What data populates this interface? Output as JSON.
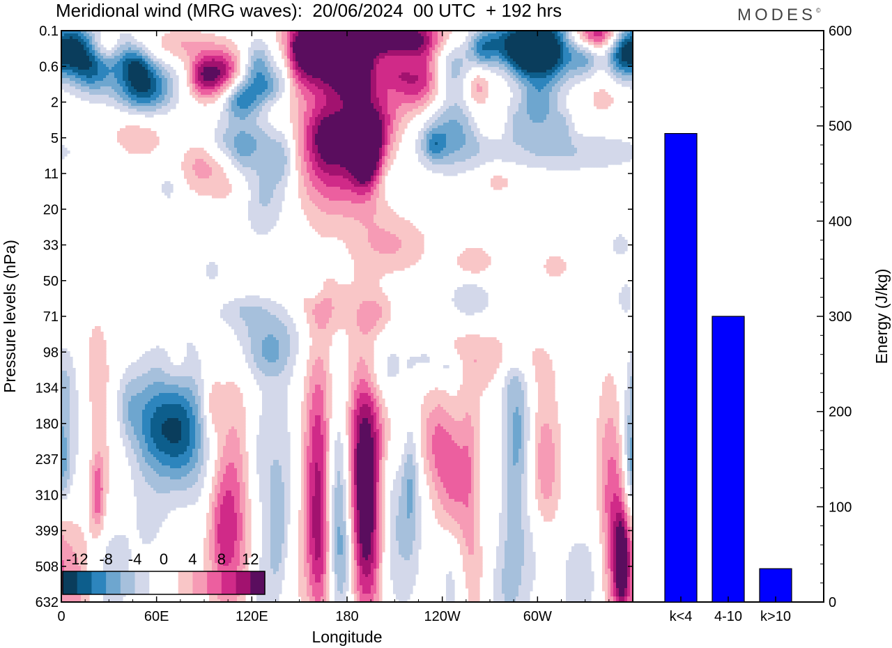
{
  "header": {
    "title": "Meridional wind (MRG waves):  20/06/2024  00 UTC  + 192 hrs",
    "brand": "MODES",
    "brand_mark": "©"
  },
  "chart_data": [
    {
      "type": "heatmap",
      "title": "Meridional wind (MRG waves):  20/06/2024  00 UTC  + 192 hrs",
      "xlabel": "Longitude",
      "ylabel": "Pressure levels (hPa)",
      "x_ticks": [
        "0",
        "60E",
        "120E",
        "180",
        "120W",
        "60W"
      ],
      "x_tick_degrees": [
        0,
        60,
        120,
        180,
        240,
        300
      ],
      "xlim": [
        0,
        360
      ],
      "y_ticks": [
        "0.1",
        "0.6",
        "2",
        "5",
        "11",
        "20",
        "33",
        "50",
        "71",
        "98",
        "134",
        "180",
        "237",
        "310",
        "399",
        "508",
        "632"
      ],
      "colorbar": {
        "labels": [
          "-12",
          "-8",
          "-4",
          "0",
          "4",
          "8",
          "12"
        ],
        "colors": [
          "#0a3d5c",
          "#0d5e8c",
          "#2d85bd",
          "#6ea6cf",
          "#a6c0dc",
          "#d3d8ea",
          "#ffffff",
          "#ffffff",
          "#f9c6c7",
          "#f69bb5",
          "#ec5f9f",
          "#d02a88",
          "#a2126f",
          "#5a0d5e"
        ]
      },
      "blobs": [
        {
          "x": 5,
          "lv": 0.5,
          "w": 11,
          "h": 0.55,
          "v": -14
        },
        {
          "x": 20,
          "lv": 1.1,
          "w": 9,
          "h": 0.5,
          "v": -8
        },
        {
          "x": 38,
          "lv": 0.6,
          "w": 7,
          "h": 0.45,
          "v": -6
        },
        {
          "x": 52,
          "lv": 1.6,
          "w": 13,
          "h": 0.55,
          "v": -12
        },
        {
          "x": 48,
          "lv": 1.0,
          "w": 6,
          "h": 0.35,
          "v": -6
        },
        {
          "x": 30,
          "lv": 0.45,
          "w": 8,
          "h": 0.3,
          "v": 5
        },
        {
          "x": 75,
          "lv": 0.4,
          "w": 14,
          "h": 0.35,
          "v": 4
        },
        {
          "x": 100,
          "lv": 1.2,
          "w": 10,
          "h": 0.5,
          "v": 12
        },
        {
          "x": 88,
          "lv": 1.3,
          "w": 6,
          "h": 0.4,
          "v": 6
        },
        {
          "x": 113,
          "lv": 1.9,
          "w": 9,
          "h": 0.45,
          "v": -10
        },
        {
          "x": 125,
          "lv": 1.0,
          "w": 7,
          "h": 0.55,
          "v": -8
        },
        {
          "x": 140,
          "lv": 1.0,
          "w": 5,
          "h": 0.6,
          "v": -5
        },
        {
          "x": 150,
          "lv": 0.5,
          "w": 8,
          "h": 0.55,
          "v": 5
        },
        {
          "x": 165,
          "lv": 0.6,
          "w": 18,
          "h": 0.75,
          "v": 14
        },
        {
          "x": 186,
          "lv": 1.1,
          "w": 11,
          "h": 0.7,
          "v": 9
        },
        {
          "x": 205,
          "lv": 0.15,
          "w": 24,
          "h": 0.4,
          "v": 14
        },
        {
          "x": 225,
          "lv": 1.3,
          "w": 13,
          "h": 0.75,
          "v": 11
        },
        {
          "x": 211,
          "lv": 1.1,
          "w": 6,
          "h": 0.3,
          "v": 4
        },
        {
          "x": 212,
          "lv": 0.9,
          "w": 10,
          "h": 0.3,
          "v": -4
        },
        {
          "x": 245,
          "lv": 1.0,
          "w": 9,
          "h": 0.6,
          "v": -7
        },
        {
          "x": 262,
          "lv": 1.6,
          "w": 6,
          "h": 0.45,
          "v": 6
        },
        {
          "x": 265,
          "lv": 0.55,
          "w": 6,
          "h": 0.4,
          "v": -6
        },
        {
          "x": 278,
          "lv": 0.3,
          "w": 12,
          "h": 0.45,
          "v": -8
        },
        {
          "x": 292,
          "lv": 0.6,
          "w": 9,
          "h": 0.5,
          "v": -10
        },
        {
          "x": 307,
          "lv": 0.5,
          "w": 12,
          "h": 0.7,
          "v": -14
        },
        {
          "x": 300,
          "lv": 2.2,
          "w": 8,
          "h": 0.55,
          "v": -7
        },
        {
          "x": 315,
          "lv": 2.7,
          "w": 5,
          "h": 0.35,
          "v": -4
        },
        {
          "x": 338,
          "lv": 0.1,
          "w": 12,
          "h": 0.3,
          "v": 10
        },
        {
          "x": 330,
          "lv": 0.8,
          "w": 6,
          "h": 0.35,
          "v": -5
        },
        {
          "x": 352,
          "lv": 0.6,
          "w": 6,
          "h": 0.5,
          "v": -6
        },
        {
          "x": 341,
          "lv": 1.9,
          "w": 8,
          "h": 0.35,
          "v": 3
        },
        {
          "x": 132,
          "lv": 1.6,
          "w": 6,
          "h": 0.3,
          "v": -4
        },
        {
          "x": 48,
          "lv": 2.9,
          "w": 14,
          "h": 0.55,
          "v": 4
        },
        {
          "x": 88,
          "lv": 3.7,
          "w": 9,
          "h": 0.6,
          "v": 5
        },
        {
          "x": 110,
          "lv": 3.1,
          "w": 18,
          "h": 0.4,
          "v": -5
        },
        {
          "x": 113,
          "lv": 3.7,
          "w": 6,
          "h": 0.45,
          "v": -3
        },
        {
          "x": 126,
          "lv": 4.4,
          "w": 11,
          "h": 0.9,
          "v": -6
        },
        {
          "x": 112,
          "lv": 4.3,
          "w": 11,
          "h": 0.6,
          "v": 4
        },
        {
          "x": 140,
          "lv": 3.6,
          "w": 5,
          "h": 0.5,
          "v": -4
        },
        {
          "x": 160,
          "lv": 3.2,
          "w": 14,
          "h": 1.5,
          "v": 3
        },
        {
          "x": 168,
          "lv": 2.9,
          "w": 11,
          "h": 0.6,
          "v": 6
        },
        {
          "x": 169,
          "lv": 3.6,
          "w": 12,
          "h": 1.1,
          "v": 6
        },
        {
          "x": 191,
          "lv": 3.2,
          "w": 12,
          "h": 1.3,
          "v": 9
        },
        {
          "x": 192,
          "lv": 3.4,
          "w": 6,
          "h": 0.6,
          "v": 13
        },
        {
          "x": 201,
          "lv": 2.6,
          "w": 9,
          "h": 0.5,
          "v": 4
        },
        {
          "x": 245,
          "lv": 2.8,
          "w": 15,
          "h": 0.75,
          "v": -7
        },
        {
          "x": 235,
          "lv": 3.2,
          "w": 5,
          "h": 0.3,
          "v": -5
        },
        {
          "x": 269,
          "lv": 2.6,
          "w": 7,
          "h": 0.3,
          "v": 3
        },
        {
          "x": 285,
          "lv": 2.6,
          "w": 5,
          "h": 0.4,
          "v": -3
        },
        {
          "x": 318,
          "lv": 3.4,
          "w": 40,
          "h": 0.4,
          "v": -4
        },
        {
          "x": 275,
          "lv": 4.2,
          "w": 9,
          "h": 0.3,
          "v": 3
        },
        {
          "x": 208,
          "lv": 4.2,
          "w": 8,
          "h": 0.4,
          "v": -3
        },
        {
          "x": 67,
          "lv": 4.4,
          "w": 4,
          "h": 0.3,
          "v": -3
        },
        {
          "x": 210,
          "lv": 6.0,
          "w": 16,
          "h": 0.6,
          "v": 4
        },
        {
          "x": 260,
          "lv": 6.5,
          "w": 9,
          "h": 0.35,
          "v": 4
        },
        {
          "x": 311,
          "lv": 6.6,
          "w": 7,
          "h": 0.3,
          "v": 3
        },
        {
          "x": 352,
          "lv": 6.0,
          "w": 5,
          "h": 0.3,
          "v": -3
        },
        {
          "x": 95,
          "lv": 6.7,
          "w": 4,
          "h": 0.3,
          "v": -3
        },
        {
          "x": 160,
          "lv": 7.2,
          "w": 4,
          "h": 0.3,
          "v": -3
        },
        {
          "x": 258,
          "lv": 7.5,
          "w": 10,
          "h": 0.45,
          "v": -4
        },
        {
          "x": 355,
          "lv": 7.5,
          "w": 4,
          "h": 0.4,
          "v": -3
        },
        {
          "x": 165,
          "lv": 7.8,
          "w": 13,
          "h": 0.6,
          "v": 4
        },
        {
          "x": 200,
          "lv": 7.9,
          "w": 8,
          "h": 0.4,
          "v": 3
        },
        {
          "x": 115,
          "lv": 7.8,
          "w": 12,
          "h": 0.3,
          "v": -3
        },
        {
          "x": 130,
          "lv": 8.4,
          "w": 22,
          "h": 0.55,
          "v": -4
        },
        {
          "x": 130,
          "lv": 9.2,
          "w": 11,
          "h": 0.5,
          "v": -4
        },
        {
          "x": 275,
          "lv": 9.3,
          "w": 22,
          "h": 0.7,
          "v": 4
        },
        {
          "x": 246,
          "lv": 8.9,
          "w": 8,
          "h": 0.3,
          "v": 3
        },
        {
          "x": 245,
          "lv": 9.3,
          "w": 6,
          "h": 0.45,
          "v": -4
        },
        {
          "x": 200,
          "lv": 9.5,
          "w": 11,
          "h": 0.7,
          "v": -4
        },
        {
          "x": 232,
          "lv": 9.2,
          "w": 8,
          "h": 0.4,
          "v": -3
        },
        {
          "x": 283,
          "lv": 9.8,
          "w": 8,
          "h": 0.4,
          "v": -3
        },
        {
          "x": 73,
          "lv": 9.4,
          "w": 6,
          "h": 0.5,
          "v": 3
        },
        {
          "x": 22,
          "lv": 9.6,
          "w": 6,
          "h": 1.2,
          "v": 4
        },
        {
          "x": 2,
          "lv": 10.0,
          "w": 4,
          "h": 0.8,
          "v": -3
        },
        {
          "x": 10,
          "lv": 11.5,
          "w": 11,
          "h": 1.6,
          "v": -4
        },
        {
          "x": 22,
          "lv": 12.6,
          "w": 10,
          "h": 1.7,
          "v": 4
        },
        {
          "x": 23,
          "lv": 13.0,
          "w": 3,
          "h": 0.8,
          "v": 6
        },
        {
          "x": 1,
          "lv": 12.3,
          "w": 4,
          "h": 0.8,
          "v": -5
        },
        {
          "x": 42,
          "lv": 10.5,
          "w": 6,
          "h": 0.7,
          "v": -4
        },
        {
          "x": 57,
          "lv": 10.6,
          "w": 9,
          "h": 1.1,
          "v": -5
        },
        {
          "x": 75,
          "lv": 10.8,
          "w": 9,
          "h": 1.5,
          "v": -6
        },
        {
          "x": 67,
          "lv": 11.3,
          "w": 14,
          "h": 0.8,
          "v": -5
        },
        {
          "x": 95,
          "lv": 10.5,
          "w": 4,
          "h": 0.6,
          "v": 4
        },
        {
          "x": 87,
          "lv": 12.0,
          "w": 10,
          "h": 1.6,
          "v": -3
        },
        {
          "x": 61,
          "lv": 13.4,
          "w": 13,
          "h": 1.7,
          "v": -3
        },
        {
          "x": 108,
          "lv": 12.7,
          "w": 9,
          "h": 2.4,
          "v": 5
        },
        {
          "x": 105,
          "lv": 14.5,
          "w": 9,
          "h": 1.5,
          "v": 4
        },
        {
          "x": 100,
          "lv": 13.8,
          "w": 6,
          "h": 1.2,
          "v": 3
        },
        {
          "x": 125,
          "lv": 12.0,
          "w": 6,
          "h": 1.4,
          "v": -3
        },
        {
          "x": 138,
          "lv": 12.2,
          "w": 7,
          "h": 2.2,
          "v": -3
        },
        {
          "x": 137,
          "lv": 14.6,
          "w": 5,
          "h": 1.3,
          "v": -5
        },
        {
          "x": 163,
          "lv": 12.5,
          "w": 7,
          "h": 2.5,
          "v": 12
        },
        {
          "x": 163,
          "lv": 14.8,
          "w": 6,
          "h": 1.2,
          "v": 4
        },
        {
          "x": 174,
          "lv": 12.9,
          "w": 7,
          "h": 2.1,
          "v": -10
        },
        {
          "x": 177,
          "lv": 14.9,
          "w": 6,
          "h": 1.2,
          "v": -4
        },
        {
          "x": 191,
          "lv": 12.4,
          "w": 9,
          "h": 2.5,
          "v": 15
        },
        {
          "x": 194,
          "lv": 14.6,
          "w": 7,
          "h": 1.5,
          "v": 4
        },
        {
          "x": 205,
          "lv": 12.6,
          "w": 7,
          "h": 2.0,
          "v": -4
        },
        {
          "x": 213,
          "lv": 14.5,
          "w": 10,
          "h": 1.5,
          "v": -3
        },
        {
          "x": 220,
          "lv": 12.2,
          "w": 4,
          "h": 1.5,
          "v": -6
        },
        {
          "x": 215,
          "lv": 11.1,
          "w": 15,
          "h": 0.9,
          "v": 3
        },
        {
          "x": 238,
          "lv": 12.2,
          "w": 5,
          "h": 1.5,
          "v": 3
        },
        {
          "x": 247,
          "lv": 12.8,
          "w": 5,
          "h": 1.2,
          "v": 5
        },
        {
          "x": 238,
          "lv": 11.6,
          "w": 10,
          "h": 0.9,
          "v": 3
        },
        {
          "x": 258,
          "lv": 12.5,
          "w": 5,
          "h": 1.6,
          "v": 7
        },
        {
          "x": 262,
          "lv": 14.9,
          "w": 6,
          "h": 1.4,
          "v": 4
        },
        {
          "x": 245,
          "lv": 15.4,
          "w": 5,
          "h": 1.1,
          "v": -3
        },
        {
          "x": 262,
          "lv": 13.2,
          "w": 5,
          "h": 1.5,
          "v": -4
        },
        {
          "x": 285,
          "lv": 12.0,
          "w": 6,
          "h": 2.7,
          "v": -5
        },
        {
          "x": 290,
          "lv": 11.0,
          "w": 5,
          "h": 1.0,
          "v": -3
        },
        {
          "x": 305,
          "lv": 12.4,
          "w": 7,
          "h": 1.6,
          "v": 6
        },
        {
          "x": 300,
          "lv": 14.4,
          "w": 9,
          "h": 1.2,
          "v": -3
        },
        {
          "x": 278,
          "lv": 15.7,
          "w": 9,
          "h": 1.1,
          "v": -3
        },
        {
          "x": 345,
          "lv": 11.5,
          "w": 6,
          "h": 1.8,
          "v": 3
        },
        {
          "x": 352,
          "lv": 14.3,
          "w": 9,
          "h": 2.0,
          "v": 9
        },
        {
          "x": 353,
          "lv": 14.9,
          "w": 3,
          "h": 0.8,
          "v": 11
        },
        {
          "x": 358,
          "lv": 12.2,
          "w": 4,
          "h": 1.6,
          "v": -4
        },
        {
          "x": 336,
          "lv": 15.1,
          "w": 6,
          "h": 1.3,
          "v": -3
        },
        {
          "x": 323,
          "lv": 15.6,
          "w": 6,
          "h": 1.2,
          "v": -3
        },
        {
          "x": 142,
          "lv": 15.3,
          "w": 6,
          "h": 1.3,
          "v": 3
        },
        {
          "x": 125,
          "lv": 15.8,
          "w": 5,
          "h": 1.0,
          "v": -3
        },
        {
          "x": 30,
          "lv": 15.0,
          "w": 9,
          "h": 1.3,
          "v": -4
        },
        {
          "x": 10,
          "lv": 15.7,
          "w": 7,
          "h": 1.1,
          "v": 4
        },
        {
          "x": 75,
          "lv": 14.4,
          "w": 10,
          "h": 1.5,
          "v": 3
        }
      ]
    },
    {
      "type": "bar",
      "categories": [
        "k<4",
        "4-10",
        "k>10"
      ],
      "values": [
        492,
        300,
        35
      ],
      "color": "#0000ff",
      "ylabel": "Energy (J/kg)",
      "ylim": [
        0,
        600
      ],
      "y_ticks": [
        0,
        100,
        200,
        300,
        400,
        500,
        600
      ]
    }
  ]
}
